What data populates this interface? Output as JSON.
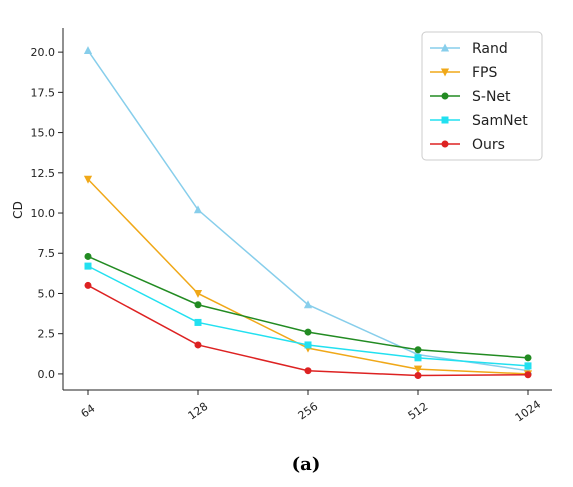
{
  "chart_data": {
    "type": "line",
    "title": "",
    "xlabel": "",
    "ylabel": "CD",
    "x_scale": "log2",
    "x": [
      64,
      128,
      256,
      512,
      1024
    ],
    "xtick_labels": [
      "64",
      "128",
      "256",
      "512",
      "1024"
    ],
    "ylim": [
      -1.0,
      21.5
    ],
    "yticks": [
      0.0,
      2.5,
      5.0,
      7.5,
      10.0,
      12.5,
      15.0,
      17.5,
      20.0
    ],
    "ytick_labels": [
      "0.0",
      "2.5",
      "5.0",
      "7.5",
      "10.0",
      "12.5",
      "15.0",
      "17.5",
      "20.0"
    ],
    "grid": false,
    "legend_position": "top-right",
    "series": [
      {
        "name": "Rand",
        "color": "#87ceeb",
        "marker": "triangle-up",
        "values": [
          20.1,
          10.2,
          4.3,
          1.2,
          0.2
        ]
      },
      {
        "name": "FPS",
        "color": "#f0a818",
        "marker": "triangle-down",
        "values": [
          12.1,
          5.0,
          1.6,
          0.3,
          0.0
        ]
      },
      {
        "name": "S-Net",
        "color": "#228b22",
        "marker": "circle",
        "values": [
          7.3,
          4.3,
          2.6,
          1.5,
          1.0
        ]
      },
      {
        "name": "SamNet",
        "color": "#22e0f0",
        "marker": "square",
        "values": [
          6.7,
          3.2,
          1.8,
          1.0,
          0.5
        ]
      },
      {
        "name": "Ours",
        "color": "#dd2222",
        "marker": "circle",
        "values": [
          5.5,
          1.8,
          0.2,
          -0.1,
          -0.05
        ]
      }
    ],
    "caption": "(a)"
  }
}
